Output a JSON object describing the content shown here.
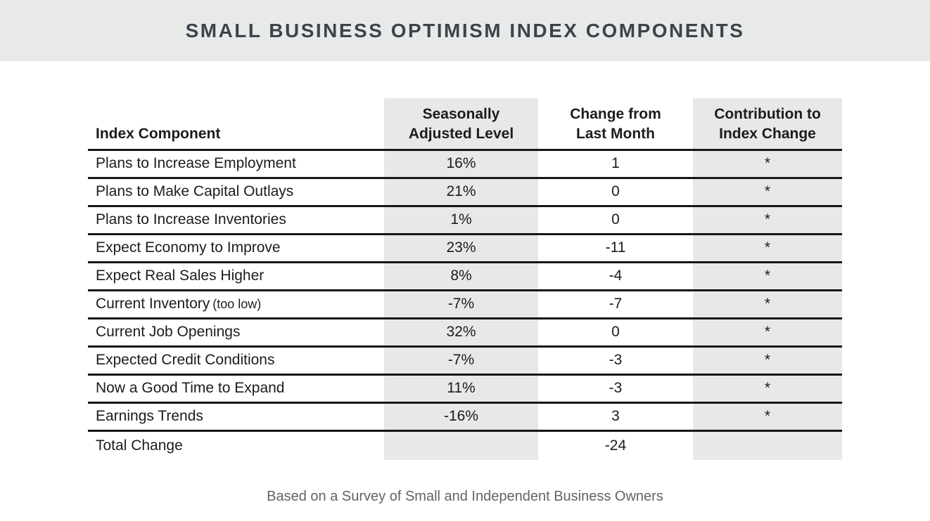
{
  "title": "SMALL BUSINESS OPTIMISM INDEX COMPONENTS",
  "footer_note": "Based on a Survey of Small and Independent Business Owners",
  "table": {
    "headers": [
      {
        "lines": [
          "Index Component",
          ""
        ]
      },
      {
        "lines": [
          "Seasonally",
          "Adjusted Level"
        ]
      },
      {
        "lines": [
          "Change from",
          "Last Month"
        ]
      },
      {
        "lines": [
          "Contribution to",
          "Index Change"
        ]
      }
    ],
    "rows": [
      {
        "component": "Plans to Increase Employment",
        "note": "",
        "level": "16%",
        "change": "1",
        "contribution": "*"
      },
      {
        "component": "Plans to Make Capital Outlays",
        "note": "",
        "level": "21%",
        "change": "0",
        "contribution": "*"
      },
      {
        "component": "Plans to Increase Inventories",
        "note": "",
        "level": "1%",
        "change": "0",
        "contribution": "*"
      },
      {
        "component": "Expect Economy to Improve",
        "note": "",
        "level": "23%",
        "change": "-11",
        "contribution": "*"
      },
      {
        "component": "Expect Real Sales Higher",
        "note": "",
        "level": "8%",
        "change": "-4",
        "contribution": "*"
      },
      {
        "component": "Current Inventory",
        "note": "(too low)",
        "level": "-7%",
        "change": "-7",
        "contribution": "*"
      },
      {
        "component": "Current Job Openings",
        "note": "",
        "level": "32%",
        "change": "0",
        "contribution": "*"
      },
      {
        "component": "Expected Credit Conditions",
        "note": "",
        "level": "-7%",
        "change": "-3",
        "contribution": "*"
      },
      {
        "component": "Now a Good Time to Expand",
        "note": "",
        "level": "11%",
        "change": "-3",
        "contribution": "*"
      },
      {
        "component": "Earnings Trends",
        "note": "",
        "level": "-16%",
        "change": "3",
        "contribution": "*"
      }
    ],
    "total": {
      "component": "Total Change",
      "level": "",
      "change": "-24",
      "contribution": ""
    }
  },
  "chart_data": {
    "type": "table",
    "title": "SMALL BUSINESS OPTIMISM INDEX COMPONENTS",
    "columns": [
      "Index Component",
      "Seasonally Adjusted Level",
      "Change from Last Month",
      "Contribution to Index Change"
    ],
    "rows": [
      [
        "Plans to Increase Employment",
        "16%",
        "1",
        "*"
      ],
      [
        "Plans to Make Capital Outlays",
        "21%",
        "0",
        "*"
      ],
      [
        "Plans to Increase Inventories",
        "1%",
        "0",
        "*"
      ],
      [
        "Expect Economy to Improve",
        "23%",
        "-11",
        "*"
      ],
      [
        "Expect Real Sales Higher",
        "8%",
        "-4",
        "*"
      ],
      [
        "Current Inventory (too low)",
        "-7%",
        "-7",
        "*"
      ],
      [
        "Current Job Openings",
        "32%",
        "0",
        "*"
      ],
      [
        "Expected Credit Conditions",
        "-7%",
        "-3",
        "*"
      ],
      [
        "Now a Good Time to Expand",
        "11%",
        "-3",
        "*"
      ],
      [
        "Earnings Trends",
        "-16%",
        "3",
        "*"
      ],
      [
        "Total Change",
        "",
        "-24",
        ""
      ]
    ],
    "note": "Based on a Survey of Small and Independent Business Owners",
    "layout_hints": {
      "shaded_columns": [
        "Seasonally Adjusted Level",
        "Contribution to Index Change"
      ],
      "total_row_has_no_bottom_border": true
    }
  },
  "colors": {
    "band_bg": "#e8eaea",
    "shaded_column_bg": "#e8e8e8",
    "border": "#161616",
    "title_text": "#3d434b",
    "body_text": "#1c1c1c",
    "footer_text": "#5f6467"
  }
}
